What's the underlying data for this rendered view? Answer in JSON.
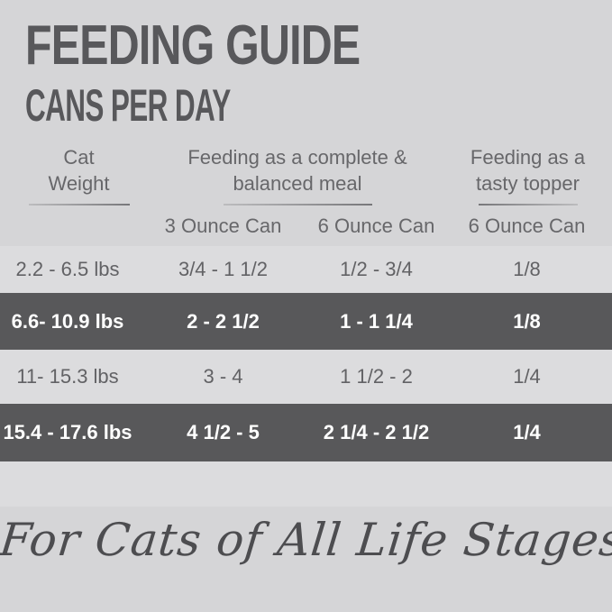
{
  "page": {
    "title": "FEEDING GUIDE",
    "subtitle": "CANS PER DAY",
    "footer_tagline": "For Cats of All Life Stages"
  },
  "colors": {
    "background": "#d5d5d7",
    "light_row": "#dcdcde",
    "dark_row": "#58585a",
    "title_text": "#58585b",
    "header_text": "#67676a",
    "dark_row_text": "#ffffff",
    "footer_text": "#4d4d50"
  },
  "table": {
    "group_headers": {
      "weight": {
        "line1": "Cat",
        "line2": "Weight"
      },
      "complete": {
        "line1": "Feeding as a complete &",
        "line2": "balanced meal"
      },
      "topper": {
        "line1": "Feeding as a",
        "line2": "tasty topper"
      }
    },
    "column_headers": {
      "complete_3oz": "3 Ounce Can",
      "complete_6oz": "6 Ounce Can",
      "topper_6oz": "6 Ounce Can"
    },
    "rows": [
      {
        "weight": "2.2 - 6.5 lbs",
        "complete_3oz": "3/4 - 1 1/2",
        "complete_6oz": "1/2 - 3/4",
        "topper_6oz": "1/8",
        "highlighted": false
      },
      {
        "weight": "6.6- 10.9 lbs",
        "complete_3oz": "2 - 2 1/2",
        "complete_6oz": "1 - 1 1/4",
        "topper_6oz": "1/8",
        "highlighted": true
      },
      {
        "weight": "11- 15.3 lbs",
        "complete_3oz": "3 - 4",
        "complete_6oz": "1 1/2 - 2",
        "topper_6oz": "1/4",
        "highlighted": false
      },
      {
        "weight": "15.4 - 17.6 lbs",
        "complete_3oz": "4 1/2 - 5",
        "complete_6oz": "2 1/4 - 2 1/2",
        "topper_6oz": "1/4",
        "highlighted": true
      }
    ]
  }
}
